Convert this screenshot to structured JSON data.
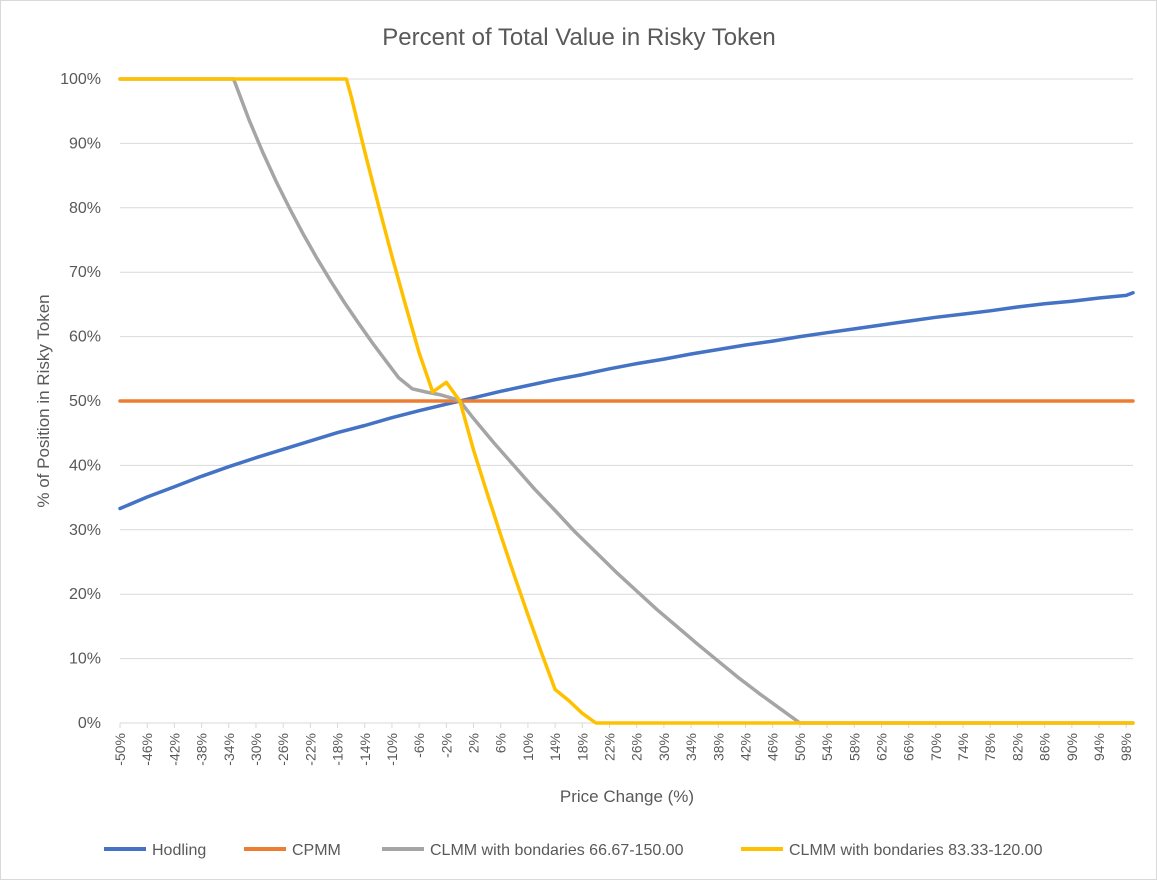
{
  "chart_data": {
    "type": "line",
    "title": "Percent of Total Value in Risky Token",
    "xlabel": "Price Change (%)",
    "ylabel": "% of Position in Risky Token",
    "xlim": [
      -50,
      99
    ],
    "ylim": [
      0,
      100
    ],
    "y_ticks": [
      "0%",
      "10%",
      "20%",
      "30%",
      "40%",
      "50%",
      "60%",
      "70%",
      "80%",
      "90%",
      "100%"
    ],
    "x_tick_labels": [
      "-50%",
      "-46%",
      "-42%",
      "-38%",
      "-34%",
      "-30%",
      "-26%",
      "-22%",
      "-18%",
      "-14%",
      "-10%",
      "-6%",
      "-2%",
      "2%",
      "6%",
      "10%",
      "14%",
      "18%",
      "22%",
      "26%",
      "30%",
      "34%",
      "38%",
      "42%",
      "46%",
      "50%",
      "54%",
      "58%",
      "62%",
      "66%",
      "70%",
      "74%",
      "78%",
      "82%",
      "86%",
      "90%",
      "94%",
      "98%"
    ],
    "grid": "horizontal",
    "legend_position": "bottom",
    "series": [
      {
        "name": "Hodling",
        "color": "#4472C4",
        "x": [
          -50,
          -46,
          -42,
          -38,
          -34,
          -30,
          -26,
          -22,
          -18,
          -14,
          -10,
          -6,
          -2,
          0,
          2,
          6,
          10,
          14,
          18,
          22,
          26,
          30,
          34,
          38,
          42,
          46,
          50,
          54,
          58,
          62,
          66,
          70,
          74,
          78,
          82,
          86,
          90,
          94,
          98,
          99
        ],
        "y": [
          33.3,
          35.1,
          36.7,
          38.3,
          39.8,
          41.2,
          42.5,
          43.8,
          45.1,
          46.2,
          47.4,
          48.5,
          49.5,
          50.0,
          50.5,
          51.5,
          52.4,
          53.3,
          54.1,
          55.0,
          55.8,
          56.5,
          57.3,
          58.0,
          58.7,
          59.3,
          60.0,
          60.6,
          61.2,
          61.8,
          62.4,
          63.0,
          63.5,
          64.0,
          64.6,
          65.1,
          65.5,
          66.0,
          66.4,
          66.8
        ]
      },
      {
        "name": "CPMM",
        "color": "#ED7D31",
        "x": [
          -50,
          99
        ],
        "y": [
          50,
          50
        ]
      },
      {
        "name": "CLMM with bondaries 66.67-150.00",
        "color": "#A5A5A5",
        "x": [
          -50,
          -33.3,
          -33,
          -31,
          -29,
          -27,
          -25,
          -23,
          -21,
          -19,
          -17,
          -15,
          -13,
          -11,
          -9,
          -7,
          -5,
          -3,
          -1,
          0,
          2,
          5,
          8,
          11,
          14,
          17,
          20,
          23,
          26,
          29,
          32,
          35,
          38,
          41,
          44,
          47,
          50,
          99
        ],
        "y": [
          100,
          100,
          99.2,
          93.6,
          88.6,
          84.0,
          79.8,
          75.8,
          72.1,
          68.6,
          65.3,
          62.2,
          59.2,
          56.4,
          53.6,
          51.9,
          51.4,
          51.0,
          50.4,
          50,
          47.3,
          43.5,
          39.9,
          36.3,
          33.0,
          29.6,
          26.5,
          23.4,
          20.5,
          17.6,
          14.9,
          12.2,
          9.6,
          7.0,
          4.6,
          2.3,
          0,
          0
        ]
      },
      {
        "name": "CLMM with bondaries 83.33-120.00",
        "color": "#FFC000",
        "x": [
          -50,
          -16.7,
          -16,
          -14,
          -12,
          -10,
          -8,
          -6,
          -4,
          -2,
          0,
          2,
          4,
          6,
          8,
          10,
          12,
          14,
          16,
          18,
          20,
          99
        ],
        "y": [
          100,
          100,
          97.3,
          88.7,
          80.5,
          72.5,
          64.9,
          57.5,
          51.4,
          52.9,
          50,
          42.4,
          35.7,
          29.2,
          22.9,
          16.8,
          10.9,
          5.2,
          3.5,
          1.5,
          0,
          0
        ]
      }
    ]
  }
}
